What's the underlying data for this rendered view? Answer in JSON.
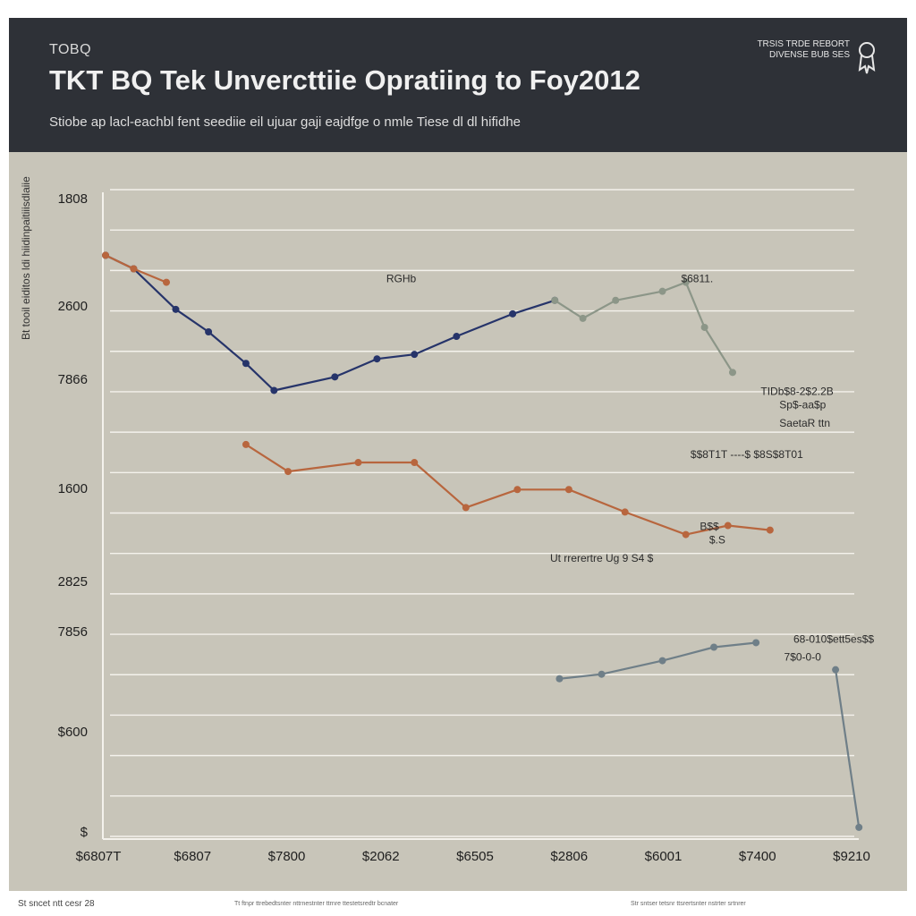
{
  "header": {
    "kicker": "TOBQ",
    "title": "TKT BQ Tek Unvercttiie Opratiing to Foy2012",
    "subtitle": "Stiobe ap lacl-eachbl fent seediie eil ujuar gaji eajdfge o nmle Tiese dl dl hifidhe",
    "brand": "TRSIS TRDE REBORT\nDIVENSE BUB SES",
    "brand_icon": "award-icon"
  },
  "footer": {
    "left": "St sncet ntt cesr 28",
    "middle": "Tt ftnpr ttrebedtsnter nttrnestnter ttrnre ttestetsredtr bcnater",
    "right": "Str sntser tetsnr ttsrertsnter nstrter srtnrer"
  },
  "chart_data": {
    "type": "line",
    "title": "TKT BQ Tek Unvercttiie Opratiing to Foy2012",
    "subtitle": "Stiobe ap lacl-eachbl fent seediie eil ujuar gaji eajdfge o nmle Tiese dl dl hifidhe",
    "ylabel": "Bt tooil eiditos ldi hiidinpaitiiisdlaiie",
    "xlabel": "",
    "x_ticks": [
      "$6807T",
      "$6807",
      "$7800",
      "$2062",
      "$6505",
      "$2806",
      "$6001",
      "$7400",
      "$9210"
    ],
    "y_ticks": [
      "$",
      "$600",
      "7856",
      "2825",
      "1600",
      "7866",
      "2600",
      "1808"
    ],
    "ylim": [
      0,
      7
    ],
    "xlim": [
      0,
      8
    ],
    "grid": true,
    "colors": {
      "navy": "#26346a",
      "rust": "#b8663e",
      "gray_green": "#8c9688",
      "slate": "#6f7f88"
    },
    "series": [
      {
        "color_key": "navy",
        "x": [
          0.0,
          0.3,
          0.75,
          1.1,
          1.5,
          1.8,
          2.45,
          2.9,
          3.3,
          3.75,
          4.35,
          4.8
        ],
        "y": [
          6.45,
          6.3,
          5.85,
          5.6,
          5.25,
          4.95,
          5.1,
          5.3,
          5.35,
          5.55,
          5.8,
          5.95
        ]
      },
      {
        "color_key": "gray_green",
        "x": [
          4.8,
          5.1,
          5.45,
          5.95,
          6.2,
          6.4,
          6.7
        ],
        "y": [
          5.95,
          5.75,
          5.95,
          6.05,
          6.15,
          5.65,
          5.15
        ]
      },
      {
        "color_key": "rust",
        "x": [
          0.0,
          0.3,
          0.65
        ],
        "y": [
          6.45,
          6.3,
          6.15
        ]
      },
      {
        "color_key": "rust",
        "x": [
          1.5,
          1.95,
          2.7,
          3.3,
          3.85,
          4.4,
          4.95,
          5.55,
          6.2,
          6.65,
          7.1
        ],
        "y": [
          4.35,
          4.05,
          4.15,
          4.15,
          3.65,
          3.85,
          3.85,
          3.6,
          3.35,
          3.45,
          3.4
        ]
      },
      {
        "color_key": "slate",
        "x": [
          4.85,
          5.3,
          5.95,
          6.5,
          6.95
        ],
        "y": [
          1.75,
          1.8,
          1.95,
          2.1,
          2.15
        ]
      },
      {
        "color_key": "slate",
        "x": [
          7.8,
          8.05
        ],
        "y": [
          1.85,
          0.1
        ]
      }
    ],
    "annotations": [
      {
        "text": "RGHb",
        "x": 3.0,
        "y": 6.15
      },
      {
        "text": "$6811.",
        "x": 6.15,
        "y": 6.15
      },
      {
        "text": "TIDb$8-2$2.2B",
        "x": 7.0,
        "y": 4.9
      },
      {
        "text": "Sp$-aa$p",
        "x": 7.2,
        "y": 4.75
      },
      {
        "text": "SaetaR ttn",
        "x": 7.2,
        "y": 4.55
      },
      {
        "text": "$$8T1T ----$ $8S$8T01",
        "x": 6.25,
        "y": 4.2
      },
      {
        "text": "Ut rrerertre Ug 9 S4 $",
        "x": 4.75,
        "y": 3.05
      },
      {
        "text": "B$$",
        "x": 6.35,
        "y": 3.4
      },
      {
        "text": "$.S",
        "x": 6.45,
        "y": 3.25
      },
      {
        "text": "68-010$ett5es$$",
        "x": 7.35,
        "y": 2.15
      },
      {
        "text": "7$0-0-0",
        "x": 7.25,
        "y": 1.95
      }
    ]
  }
}
